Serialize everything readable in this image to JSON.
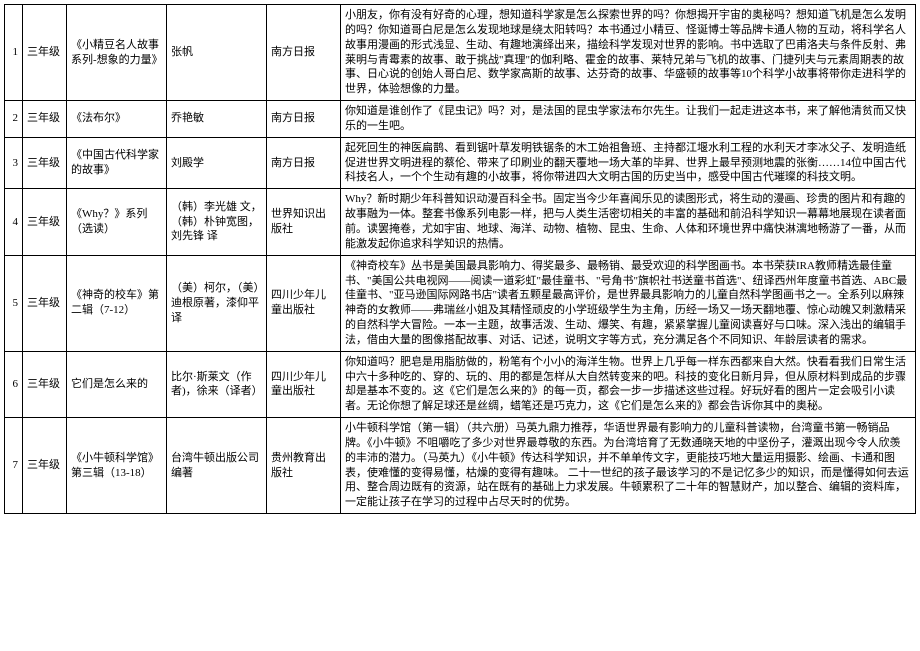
{
  "table": {
    "rows": [
      {
        "idx": "1",
        "grade": "三年级",
        "title": "《小精豆名人故事系列-想象的力量》",
        "author": "张帆",
        "publisher": "南方日报",
        "desc": "小朋友，你有没有好奇的心理，想知道科学家是怎么探索世界的吗？你想揭开宇宙的奥秘吗？想知道飞机是怎么发明的吗？你知道哥白尼是怎么发现地球是绕太阳转吗？本书通过小精豆、怪诞博士等品牌卡通人物的互动，将科学名人故事用漫画的形式浅显、生动、有趣地演绎出来，描绘科学发现对世界的影响。书中选取了巴甫洛夫与条件反射、弗莱明与青霉素的故事、敢于挑战\"真理\"的伽利略、霍金的故事、莱特兄弟与飞机的故事、门捷列夫与元素周期表的故事、日心说的创始人哥白尼、数学家高斯的故事、达芬奇的故事、华盛顿的故事等10个科学小故事将带你走进科学的世界，体验想像的力量。"
      },
      {
        "idx": "2",
        "grade": "三年级",
        "title": "《法布尔》",
        "author": "乔艳敏",
        "publisher": "南方日报",
        "desc": "你知道是谁创作了《昆虫记》吗？对，是法国的昆虫学家法布尔先生。让我们一起走进这本书，来了解他清贫而又快乐的一生吧。"
      },
      {
        "idx": "3",
        "grade": "三年级",
        "title": "《中国古代科学家的故事》",
        "author": "刘殿学",
        "publisher": "南方日报",
        "desc": "起死回生的神医扁鹊、看到锯叶草发明铁锯条的木工始祖鲁班、主持都江堰水利工程的水利天才李冰父子、发明造纸促进世界文明进程的蔡伦、带来了印刷业的翻天覆地一场大革的毕昇、世界上最早预测地震的张衡……14位中国古代科技名人，一个个生动有趣的小故事，将你带进四大文明古国的历史当中，感受中国古代璀璨的科技文明。"
      },
      {
        "idx": "4",
        "grade": "三年级",
        "title": "《Why？》系列（选读）",
        "author": "（韩）李光雄 文，（韩）朴钟宽图，刘先锋 译",
        "publisher": "世界知识出版社",
        "desc": "Why？新时期少年科普知识动漫百科全书。固定当今少年喜闻乐见的读图形式，将生动的漫画、珍贵的图片和有趣的故事融为一体。整套书像系列电影一样，把与人类生活密切相关的丰富的基础和前沿科学知识一幕幕地展现在读者面前。读罢掩卷，尤如宇宙、地球、海洋、动物、植物、昆虫、生命、人体和环境世界中痛快淋漓地畅游了一番，从而能激发起你追求科学知识的热情。"
      },
      {
        "idx": "5",
        "grade": "三年级",
        "title": "《神奇的校车》第二辑（7-12）",
        "author": "（美）柯尔，（美）迪根原著，漆仰平译",
        "publisher": "四川少年儿童出版社",
        "desc": "《神奇校车》丛书是美国最具影响力、得奖最多、最畅销、最受欢迎的科学图画书。本书荣获IRA教师精选最佳童书、\"美国公共电视网——阅读一道彩虹\"最佳童书、\"号角书\"旗帜社书送童书首选\"、纽译西州年度童书首选、ABC最佳童书、\"亚马逊国际网路书店\"读者五颗星最高评价，是世界最具影响力的儿童自然科学图画书之一。全系列以麻辣神奇的女教师——弗瑞丝小姐及其精怪顽皮的小学班级学生为主角，历经一场又一场天翻地覆、惊心动魄又刺激精采的自然科学大冒险。一本一主题，故事活泼、生动、爆笑、有趣，紧紧掌握儿童阅读喜好与口味。深入浅出的编辑手法，借由大量的图像搭配故事、对话、记述，说明文字等方式，充分满足各个不同知识、年龄层读者的需求。"
      },
      {
        "idx": "6",
        "grade": "三年级",
        "title": "它们是怎么来的",
        "author": "比尔·斯莱文（作者)，徐来（译者）",
        "publisher": "四川少年儿童出版社",
        "desc": "你知道吗？肥皂是用脂肪做的，粉笔有个小小的海洋生物。世界上几乎每一样东西都来自大然。快看看我们日常生活中六十多种吃的、穿的、玩的、用的都是怎样从大自然转变来的吧。科技的变化日新月异，但从原材料到成品的步骤却是基本不变的。这《它们是怎么来的》的每一页，都会一步一步描述这些过程。好玩好看的图片一定会吸引小读者。无论你想了解足球还是丝绸，蜡笔还是巧克力，这《它们是怎么来的》都会告诉你其中的奥秘。"
      },
      {
        "idx": "7",
        "grade": "三年级",
        "title": "《小牛顿科学馆》第三辑（13-18）",
        "author": "台湾牛顿出版公司编著",
        "publisher": "贵州教育出版社",
        "desc": "小牛顿科学馆（第一辑）（共六册）马英九鼎力推荐，华语世界最有影响力的儿童科普读物，台湾童书第一畅销品牌。《小牛顿》不咀嚼吃了多少对世界最尊敬的东西。为台湾培育了无数通晓天地的中坚份子，灌溉出现今令人欣羡的丰沛的潜力。（马英九）《小牛顿》传达科学知识，并不单单传文字，更能技巧地大量运用摄影、绘画、卡通和图表，使难懂的变得易懂，枯燥的变得有趣味。 二十一世纪的孩子最该学习的不是记忆多少的知识，而是懂得如何去运用、整合周边既有的资源，站在既有的基础上力求发展。牛顿累积了二十年的智慧财产，加以整合、编辑的资料库，一定能让孩子在学习的过程中占尽天时的优势。"
      }
    ]
  },
  "style": {
    "font_size_pt": 11,
    "font_family": "SimSun",
    "border_color": "#000000",
    "background_color": "#ffffff",
    "text_color": "#000000"
  }
}
